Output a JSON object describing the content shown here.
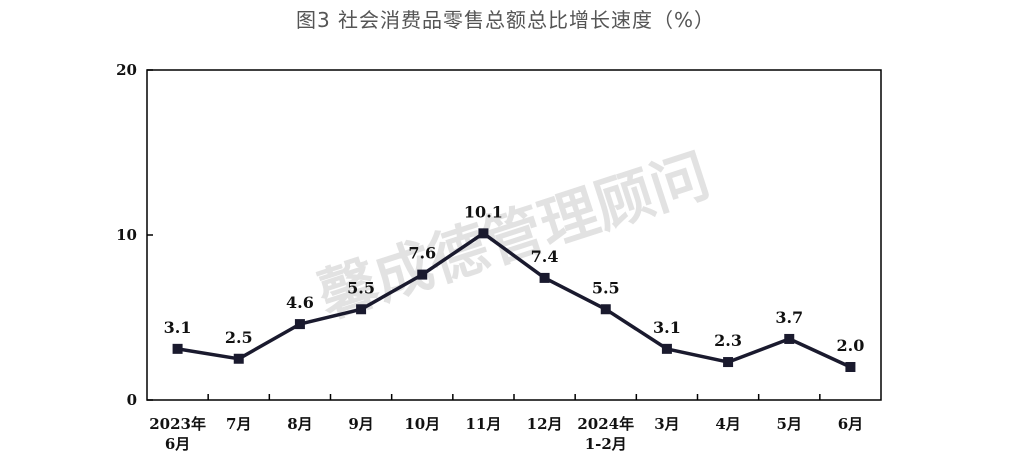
{
  "chart_data": {
    "type": "line",
    "title": "图3 社会消费品零售总额总比增长速度（%）",
    "categories": [
      [
        "2023年",
        "6月"
      ],
      [
        "7月"
      ],
      [
        "8月"
      ],
      [
        "9月"
      ],
      [
        "10月"
      ],
      [
        "11月"
      ],
      [
        "12月"
      ],
      [
        "2024年",
        "1-2月"
      ],
      [
        "3月"
      ],
      [
        "4月"
      ],
      [
        "5月"
      ],
      [
        "6月"
      ]
    ],
    "values": [
      3.1,
      2.5,
      4.6,
      5.5,
      7.6,
      10.1,
      7.4,
      5.5,
      3.1,
      2.3,
      3.7,
      2.0
    ],
    "data_labels": [
      "3.1",
      "2.5",
      "4.6",
      "5.5",
      "7.6",
      "10.1",
      "7.4",
      "5.5",
      "3.1",
      "2.3",
      "3.7",
      "2.0"
    ],
    "ylim": [
      0,
      20
    ],
    "yticks": [
      "0",
      "10",
      "20"
    ],
    "grid": false,
    "watermark": "馨成德管理顾问",
    "colors": {
      "line": "#1a1a2e",
      "marker": "#1a1a2e",
      "watermark": "#cccccc"
    }
  }
}
